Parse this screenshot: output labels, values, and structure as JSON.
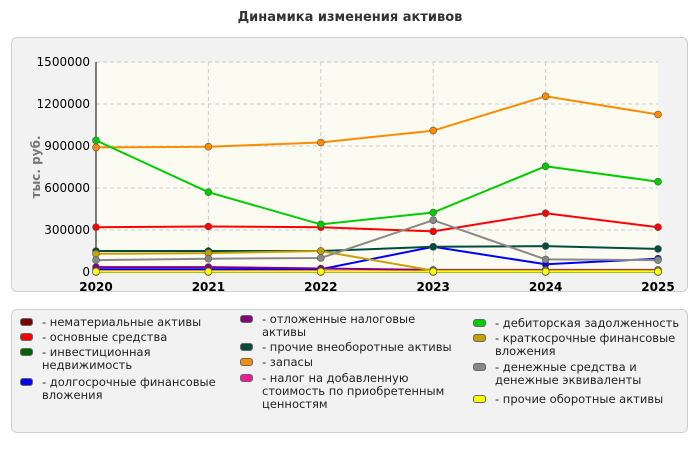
{
  "title": "Динамика изменения активов",
  "chart_data": {
    "type": "line",
    "title": "Динамика изменения активов",
    "xlabel": "",
    "ylabel": "тыс. руб.",
    "x": [
      "2020",
      "2021",
      "2022",
      "2023",
      "2024",
      "2025"
    ],
    "ylim": [
      0,
      1500000
    ],
    "yticks": [
      "0",
      "300000",
      "600000",
      "900000",
      "1200000",
      "1500000"
    ],
    "grid": true,
    "legend_position": "bottom",
    "series": [
      {
        "name": "нематериальные активы",
        "color": "#7a0000",
        "values": [
          0,
          0,
          0,
          0,
          0,
          0
        ]
      },
      {
        "name": "основные средства",
        "color": "#ff0000",
        "values": [
          320000,
          325000,
          320000,
          290000,
          420000,
          320000
        ]
      },
      {
        "name": "инвестиционная недвижимость",
        "color": "#006600",
        "values": [
          0,
          0,
          0,
          0,
          0,
          0
        ]
      },
      {
        "name": "долгосрочные финансовые вложения",
        "color": "#0000ff",
        "values": [
          20000,
          20000,
          20000,
          180000,
          55000,
          95000
        ]
      },
      {
        "name": "отложенные налоговые активы",
        "color": "#800080",
        "values": [
          35000,
          35000,
          25000,
          15000,
          15000,
          15000
        ]
      },
      {
        "name": "прочие внеоборотные активы",
        "color": "#004d40",
        "values": [
          150000,
          150000,
          150000,
          180000,
          185000,
          165000
        ]
      },
      {
        "name": "запасы",
        "color": "#ff8c00",
        "values": [
          890000,
          895000,
          925000,
          1010000,
          1255000,
          1125000
        ]
      },
      {
        "name": "налог на добавленную стоимость по приобретенным ценностям",
        "color": "#ff1493",
        "values": [
          5000,
          5000,
          5000,
          5000,
          5000,
          5000
        ]
      },
      {
        "name": "дебиторская задолженность",
        "color": "#00cc00",
        "values": [
          940000,
          570000,
          340000,
          425000,
          755000,
          645000
        ]
      },
      {
        "name": "краткосрочные финансовые вложения",
        "color": "#c8a000",
        "values": [
          130000,
          135000,
          150000,
          10000,
          10000,
          10000
        ]
      },
      {
        "name": "денежные средства и денежные эквиваленты",
        "color": "#888888",
        "values": [
          85000,
          95000,
          100000,
          370000,
          90000,
          85000
        ]
      },
      {
        "name": "прочие оборотные активы",
        "color": "#ffff00",
        "values": [
          3000,
          3000,
          3000,
          3000,
          3000,
          3000
        ]
      }
    ]
  }
}
